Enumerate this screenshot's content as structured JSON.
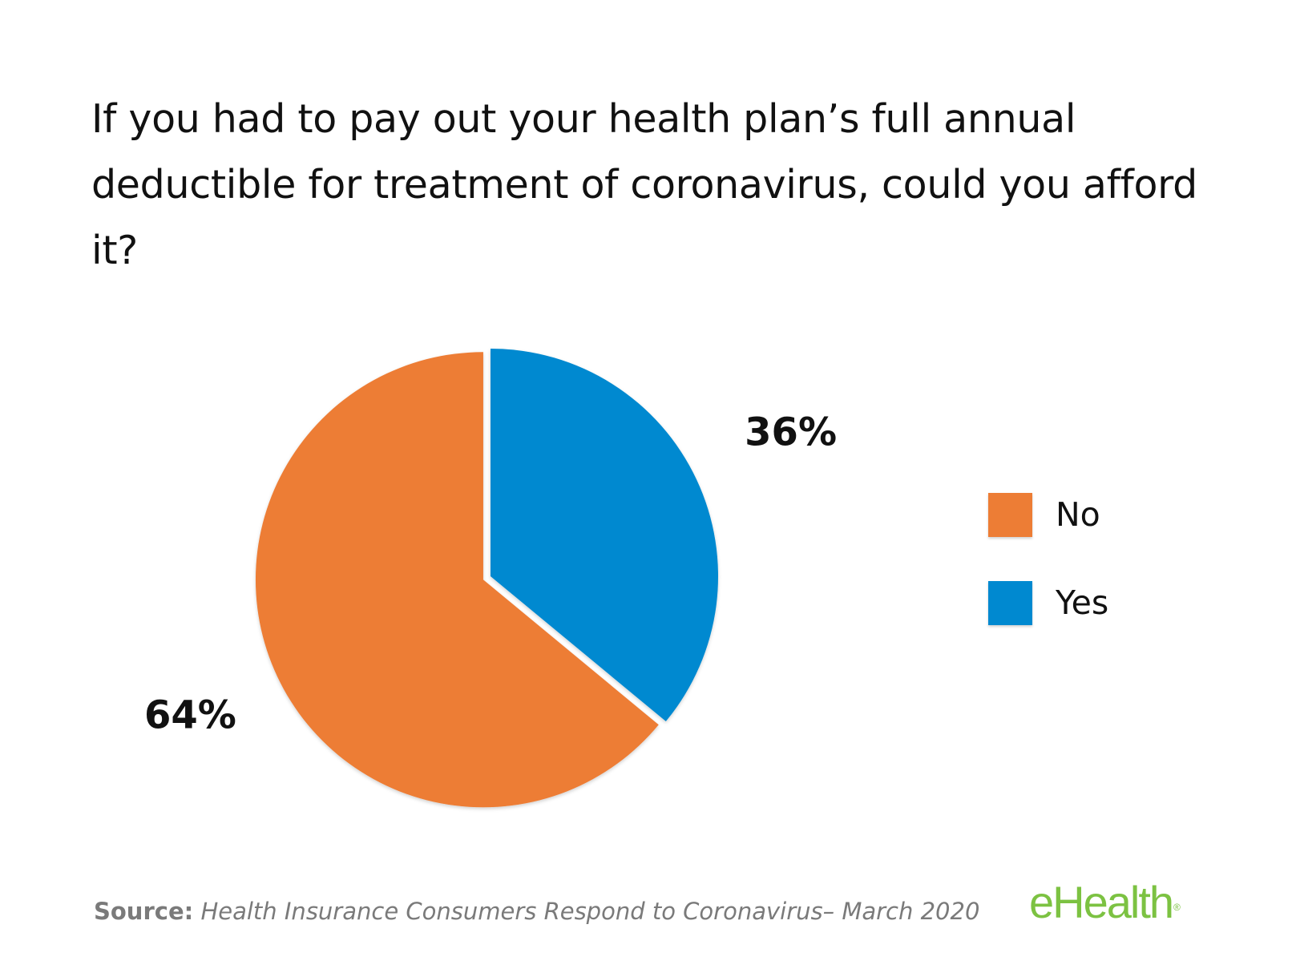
{
  "chart_data": {
    "type": "pie",
    "title": "If you had to pay out your health plan’s full annual deductible for treatment of coronavirus, could you afford it?",
    "slices": [
      {
        "name": "Yes",
        "value": 36,
        "label": "36%",
        "color": "#0089d0"
      },
      {
        "name": "No",
        "value": 64,
        "label": "64%",
        "color": "#ed7d35"
      }
    ],
    "legend": [
      {
        "name": "No",
        "color": "#ed7d35"
      },
      {
        "name": "Yes",
        "color": "#0089d0"
      }
    ],
    "legend_position": "right"
  },
  "footer": {
    "source_label": "Source:",
    "source_text": "Health Insurance Consumers Respond to Coronavirus– March 2020"
  },
  "brand": {
    "logo_text": "eHealth",
    "logo_mark": "®",
    "color": "#7cc242"
  }
}
